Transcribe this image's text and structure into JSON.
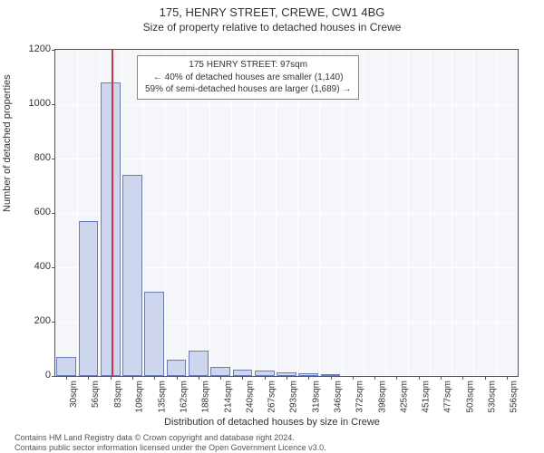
{
  "title": "175, HENRY STREET, CREWE, CW1 4BG",
  "subtitle": "Size of property relative to detached houses in Crewe",
  "ylabel": "Number of detached properties",
  "xlabel": "Distribution of detached houses by size in Crewe",
  "footer_line1": "Contains HM Land Registry data © Crown copyright and database right 2024.",
  "footer_line2": "Contains public sector information licensed under the Open Government Licence v3.0.",
  "chart": {
    "type": "bar",
    "background_color": "#f5f6f9",
    "grid_color": "#ffffff",
    "axis_color": "#555555",
    "bar_fill": "#cdd6ec",
    "bar_stroke": "#6a7db8",
    "marker_color": "#cc3344",
    "font_color": "#333333",
    "title_fontsize": 13,
    "subtitle_fontsize": 12,
    "label_fontsize": 11,
    "tick_fontsize": 10,
    "ylim": [
      0,
      1200
    ],
    "yticks": [
      0,
      200,
      400,
      600,
      800,
      1000,
      1200
    ],
    "marker_x_value": 97,
    "annotation": {
      "line1": "175 HENRY STREET: 97sqm",
      "line2": "← 40% of detached houses are smaller (1,140)",
      "line3": "59% of semi-detached houses are larger (1,689) →"
    },
    "x_start": 30,
    "x_step": 26.3,
    "categories": [
      "30sqm",
      "56sqm",
      "83sqm",
      "109sqm",
      "135sqm",
      "162sqm",
      "188sqm",
      "214sqm",
      "240sqm",
      "267sqm",
      "293sqm",
      "319sqm",
      "346sqm",
      "372sqm",
      "398sqm",
      "425sqm",
      "451sqm",
      "477sqm",
      "503sqm",
      "530sqm",
      "556sqm"
    ],
    "values": [
      70,
      570,
      1080,
      740,
      310,
      60,
      95,
      35,
      25,
      20,
      15,
      10,
      5,
      0,
      0,
      0,
      0,
      0,
      0,
      0,
      0
    ]
  }
}
